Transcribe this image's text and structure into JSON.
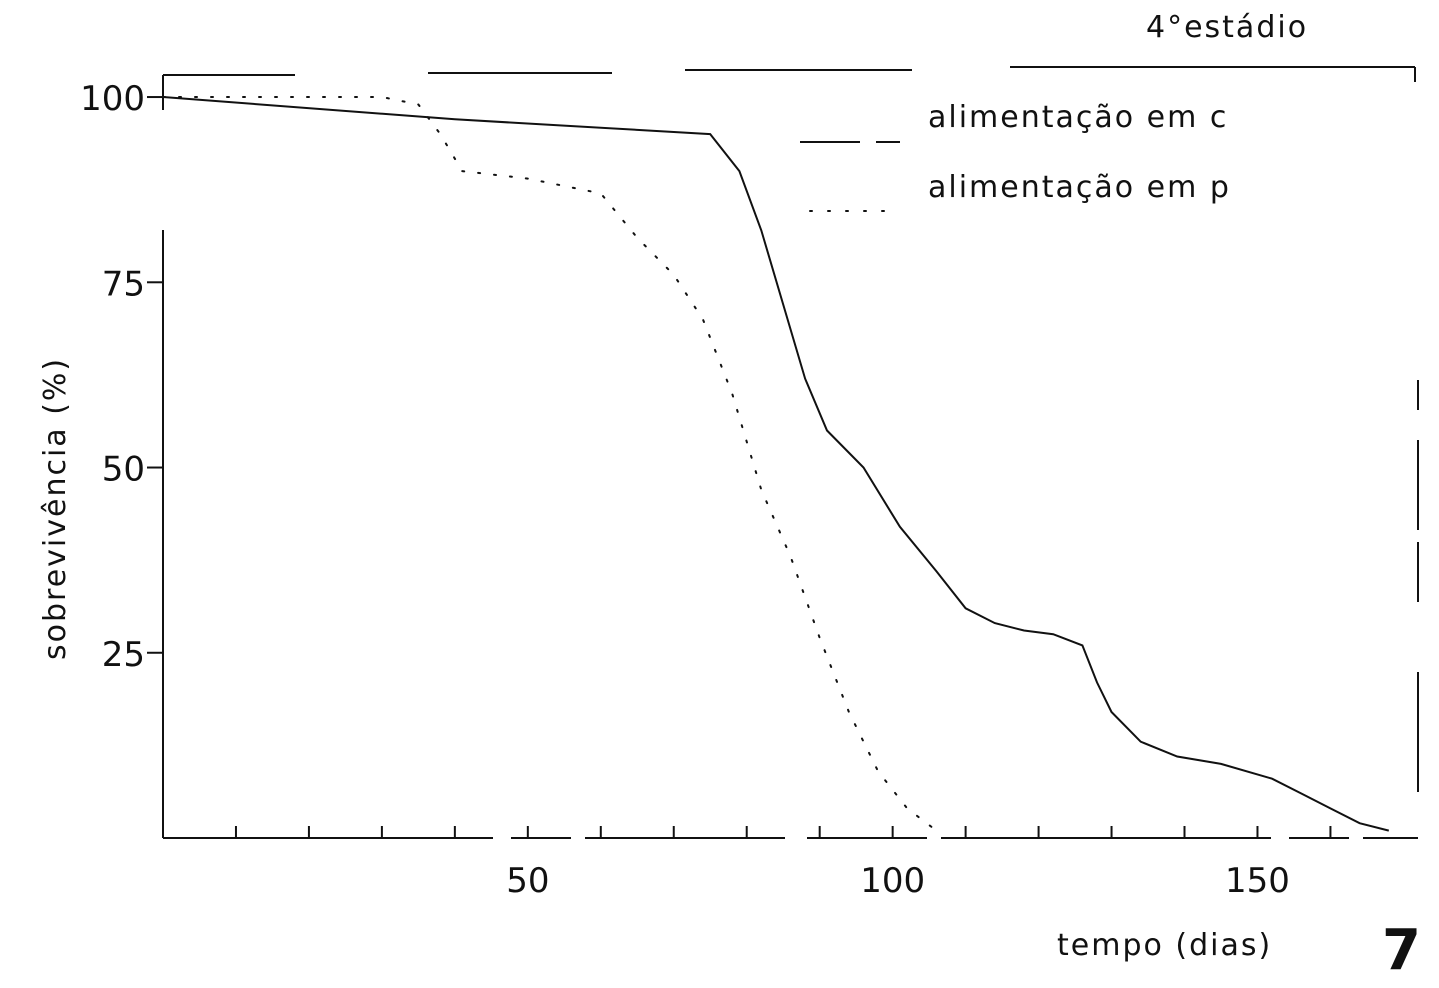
{
  "stage_label": "4°estádio",
  "xlabel": "tempo (dias)",
  "ylabel": "sobrevivência (%)",
  "figure_number": "7",
  "chart_data": {
    "type": "line",
    "title": "",
    "xlabel": "tempo (dias)",
    "ylabel": "sobrevivência (%)",
    "xlim": [
      0,
      172
    ],
    "ylim": [
      0,
      105
    ],
    "x_ticks": [
      50,
      100,
      150
    ],
    "y_ticks": [
      25,
      50,
      75,
      100
    ],
    "grid": false,
    "legend_position": "top-right",
    "series": [
      {
        "name": "alimentação em c",
        "style": "solid",
        "x": [
          0,
          40,
          75,
          79,
          82,
          85,
          88,
          91,
          96,
          101,
          106,
          110,
          114,
          118,
          122,
          126,
          128,
          130,
          134,
          139,
          145,
          152,
          156,
          160,
          164,
          168
        ],
        "y": [
          100,
          97,
          95,
          90,
          82,
          72,
          62,
          55,
          50,
          42,
          36,
          31,
          29,
          28,
          27.5,
          26,
          21,
          17,
          13,
          11,
          10,
          8,
          6,
          4,
          2,
          1
        ]
      },
      {
        "name": "alimentação em p",
        "style": "dotted",
        "x": [
          0,
          30,
          35,
          38,
          41,
          50,
          60,
          65,
          70,
          74,
          78,
          82,
          86,
          90,
          94,
          98,
          102,
          106
        ],
        "y": [
          100,
          100,
          99,
          95,
          90,
          89,
          87,
          81,
          76,
          70,
          60,
          47,
          38,
          27,
          17,
          9,
          4,
          1
        ]
      }
    ]
  }
}
